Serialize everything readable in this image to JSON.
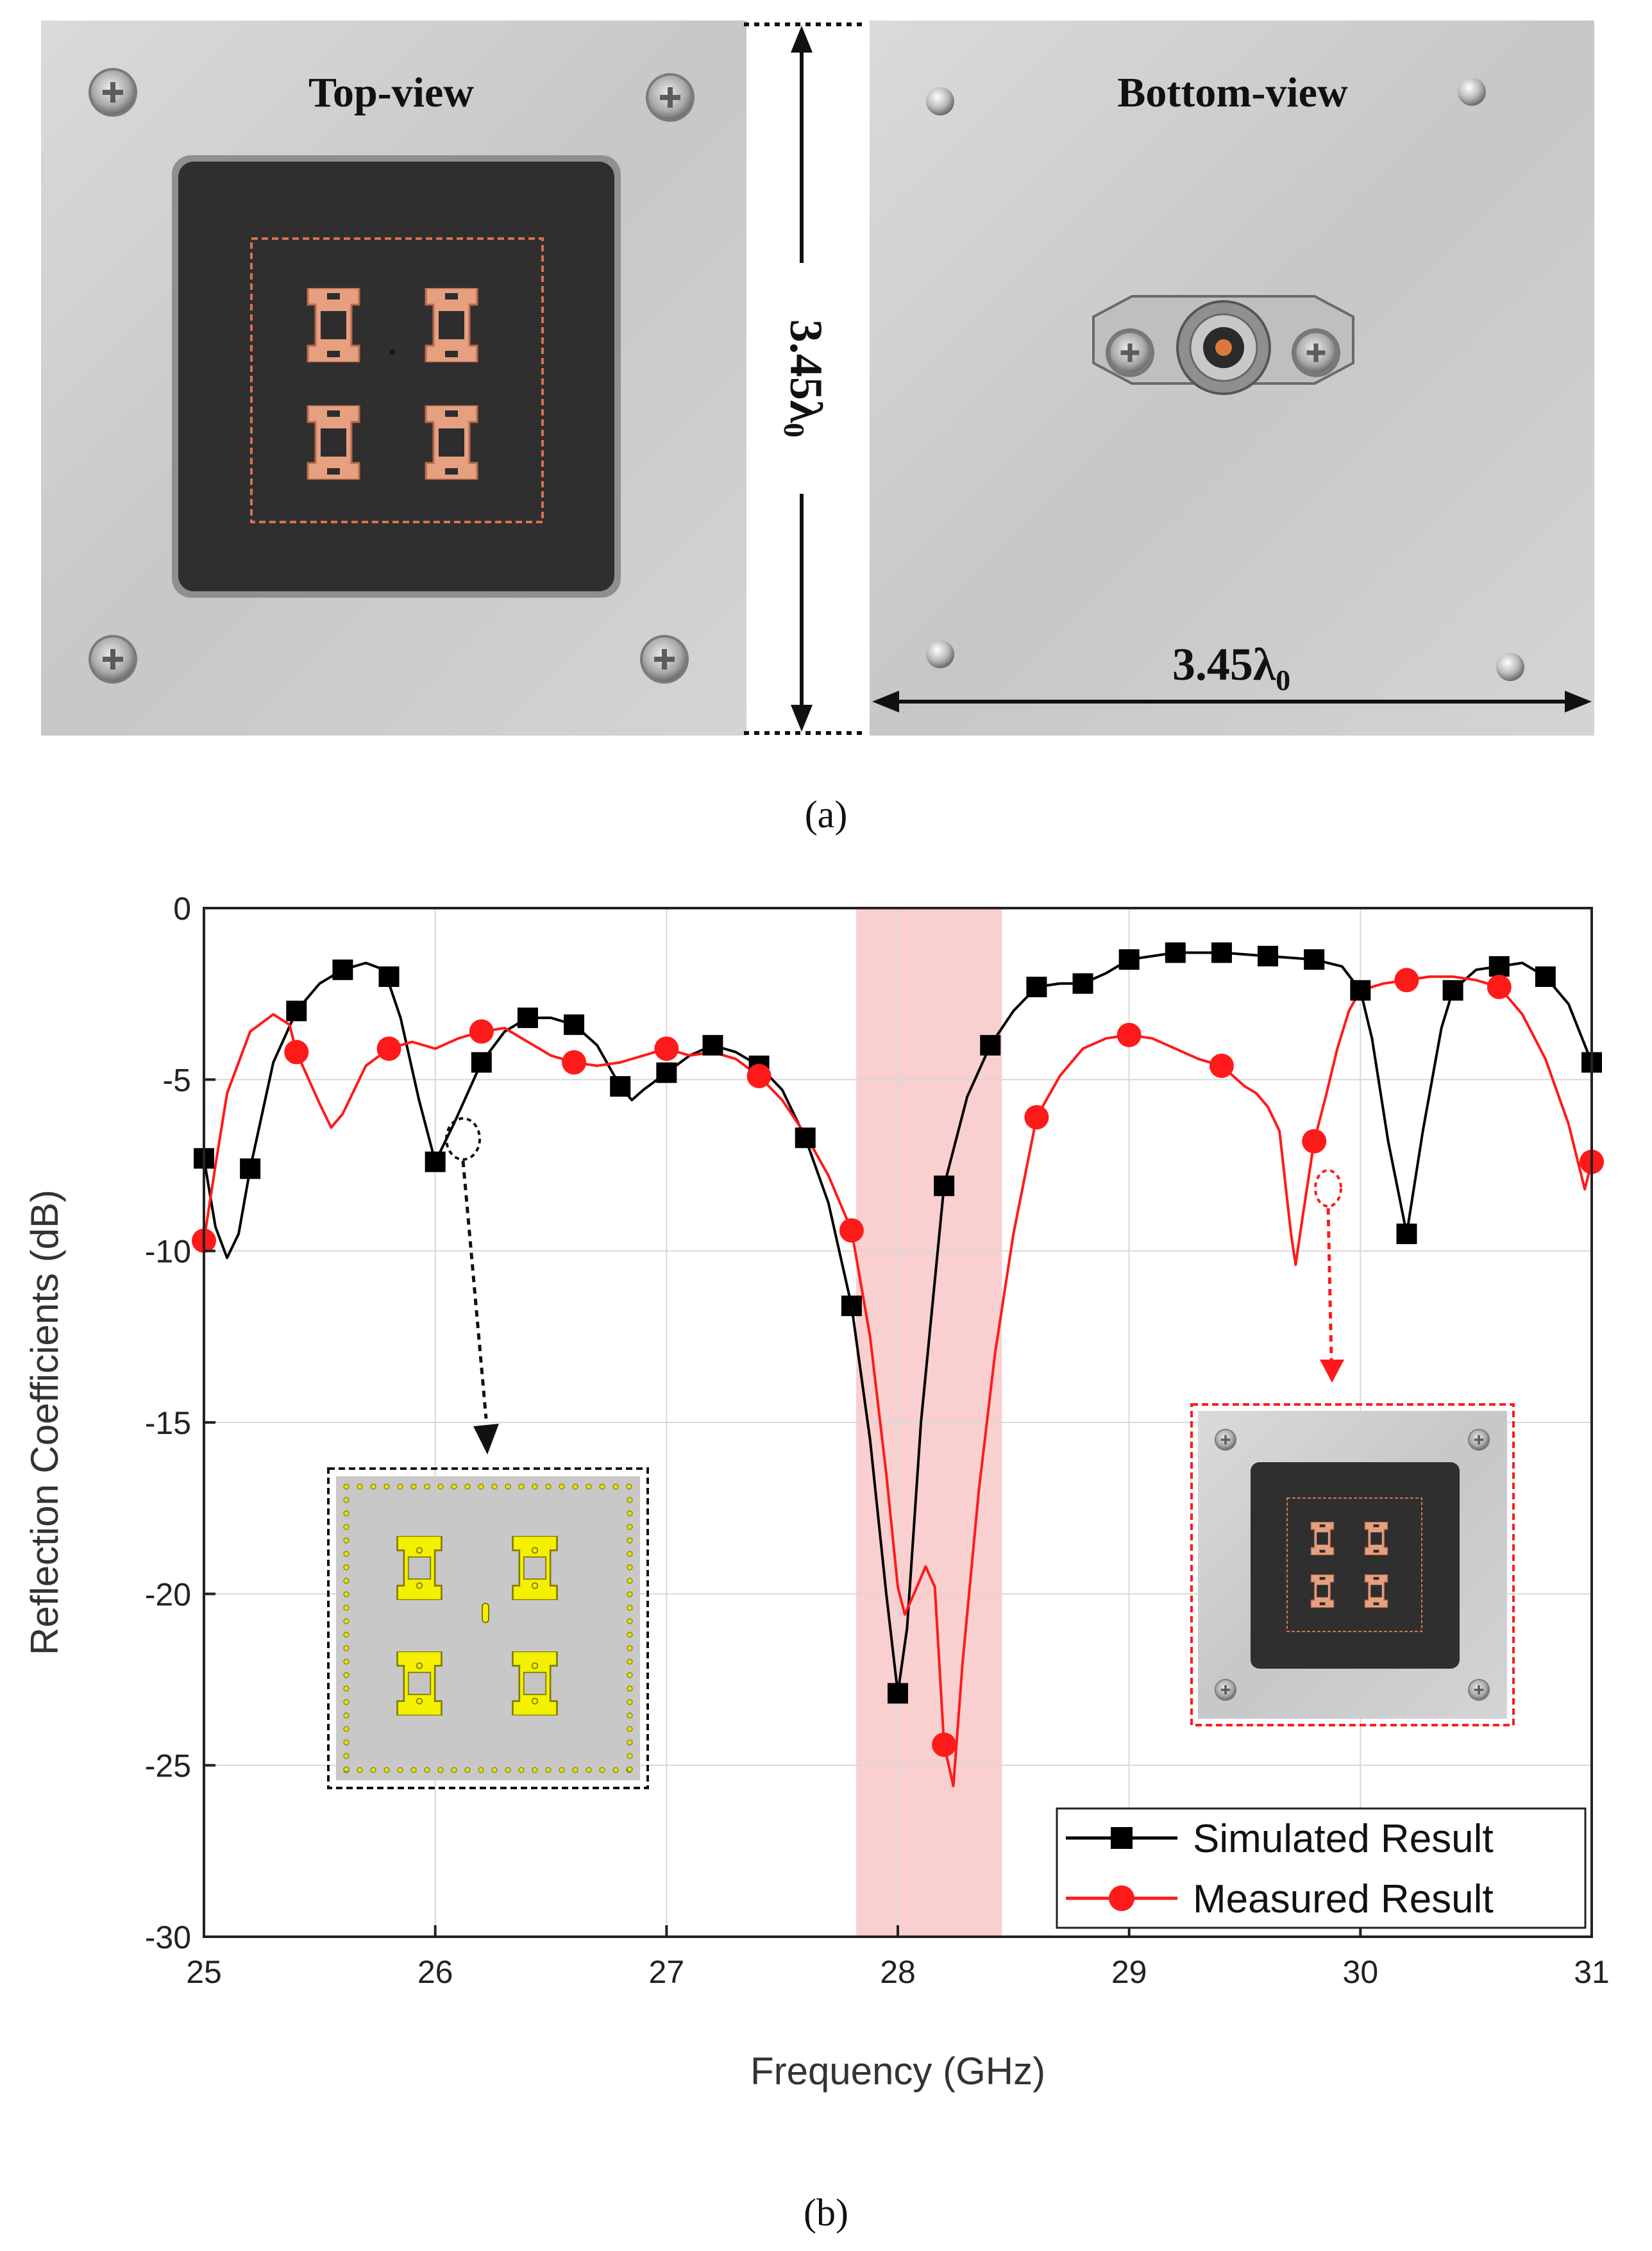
{
  "panel_a": {
    "caption": "(a)",
    "top_view_label": "Top-view",
    "bottom_view_label": "Bottom-view",
    "dimension_vertical": "3.45λ",
    "dimension_horizontal": "3.45λ",
    "dimension_subscript": "0"
  },
  "panel_b": {
    "caption": "(b)"
  },
  "colors": {
    "simulated": "#000000",
    "measured": "#ff1a1a",
    "highlight": "#f9cfcf",
    "board": "#303030",
    "copper": "#e39a7a",
    "aluminum": "#cfd0d2",
    "patch_yellow": "#f4f000"
  },
  "chart_data": {
    "type": "line",
    "title": "",
    "xlabel": "Frequency (GHz)",
    "ylabel": "Reflection Coefficients (dB)",
    "xlim": [
      25,
      31
    ],
    "ylim": [
      -30,
      0
    ],
    "xticks": [
      25,
      26,
      27,
      28,
      29,
      30,
      31
    ],
    "yticks": [
      0,
      -5,
      -10,
      -15,
      -20,
      -25,
      -30
    ],
    "grid": true,
    "legend_position": "bottom-right",
    "highlight_band": [
      27.82,
      28.45
    ],
    "series": [
      {
        "name": "Simulated Result",
        "marker": "square",
        "markers": [
          [
            25.0,
            -7.3
          ],
          [
            25.2,
            -7.6
          ],
          [
            25.4,
            -3.0
          ],
          [
            25.6,
            -1.8
          ],
          [
            25.8,
            -2.0
          ],
          [
            26.0,
            -7.4
          ],
          [
            26.2,
            -4.5
          ],
          [
            26.4,
            -3.2
          ],
          [
            26.6,
            -3.4
          ],
          [
            26.8,
            -5.2
          ],
          [
            27.0,
            -4.8
          ],
          [
            27.2,
            -4.0
          ],
          [
            27.4,
            -4.6
          ],
          [
            27.6,
            -6.7
          ],
          [
            27.8,
            -11.6
          ],
          [
            28.0,
            -22.9
          ],
          [
            28.2,
            -8.1
          ],
          [
            28.4,
            -4.0
          ],
          [
            28.6,
            -2.3
          ],
          [
            28.8,
            -2.2
          ],
          [
            29.0,
            -1.5
          ],
          [
            29.2,
            -1.3
          ],
          [
            29.4,
            -1.3
          ],
          [
            29.6,
            -1.4
          ],
          [
            29.8,
            -1.5
          ],
          [
            30.0,
            -2.4
          ],
          [
            30.2,
            -9.5
          ],
          [
            30.4,
            -2.4
          ],
          [
            30.6,
            -1.7
          ],
          [
            30.8,
            -2.0
          ],
          [
            31.0,
            -4.5
          ]
        ],
        "curve": [
          [
            25.0,
            -7.3
          ],
          [
            25.05,
            -9.3
          ],
          [
            25.1,
            -10.2
          ],
          [
            25.15,
            -9.5
          ],
          [
            25.2,
            -7.6
          ],
          [
            25.3,
            -4.5
          ],
          [
            25.4,
            -3.0
          ],
          [
            25.5,
            -2.2
          ],
          [
            25.6,
            -1.8
          ],
          [
            25.7,
            -1.6
          ],
          [
            25.78,
            -1.8
          ],
          [
            25.85,
            -3.2
          ],
          [
            25.93,
            -5.6
          ],
          [
            26.0,
            -7.4
          ],
          [
            26.08,
            -6.3
          ],
          [
            26.2,
            -4.5
          ],
          [
            26.3,
            -3.6
          ],
          [
            26.4,
            -3.2
          ],
          [
            26.5,
            -3.2
          ],
          [
            26.6,
            -3.4
          ],
          [
            26.7,
            -4.0
          ],
          [
            26.8,
            -5.2
          ],
          [
            26.85,
            -5.6
          ],
          [
            26.9,
            -5.3
          ],
          [
            27.0,
            -4.8
          ],
          [
            27.1,
            -4.3
          ],
          [
            27.2,
            -4.0
          ],
          [
            27.3,
            -4.2
          ],
          [
            27.4,
            -4.6
          ],
          [
            27.5,
            -5.3
          ],
          [
            27.6,
            -6.7
          ],
          [
            27.7,
            -8.6
          ],
          [
            27.8,
            -11.6
          ],
          [
            27.88,
            -15.5
          ],
          [
            27.95,
            -20.0
          ],
          [
            28.0,
            -22.9
          ],
          [
            28.04,
            -21.0
          ],
          [
            28.1,
            -15.0
          ],
          [
            28.2,
            -8.1
          ],
          [
            28.3,
            -5.5
          ],
          [
            28.4,
            -4.0
          ],
          [
            28.5,
            -3.0
          ],
          [
            28.6,
            -2.3
          ],
          [
            28.7,
            -2.2
          ],
          [
            28.8,
            -2.2
          ],
          [
            28.9,
            -1.9
          ],
          [
            29.0,
            -1.5
          ],
          [
            29.2,
            -1.3
          ],
          [
            29.4,
            -1.3
          ],
          [
            29.6,
            -1.4
          ],
          [
            29.8,
            -1.5
          ],
          [
            29.92,
            -1.7
          ],
          [
            30.0,
            -2.4
          ],
          [
            30.05,
            -3.8
          ],
          [
            30.12,
            -6.8
          ],
          [
            30.2,
            -9.5
          ],
          [
            30.27,
            -6.5
          ],
          [
            30.35,
            -3.5
          ],
          [
            30.4,
            -2.4
          ],
          [
            30.5,
            -1.8
          ],
          [
            30.6,
            -1.7
          ],
          [
            30.7,
            -1.6
          ],
          [
            30.8,
            -2.0
          ],
          [
            30.9,
            -2.8
          ],
          [
            31.0,
            -4.5
          ]
        ]
      },
      {
        "name": "Measured Result",
        "marker": "circle",
        "markers": [
          [
            25.0,
            -9.7
          ],
          [
            25.4,
            -4.2
          ],
          [
            25.8,
            -4.1
          ],
          [
            26.2,
            -3.6
          ],
          [
            26.6,
            -4.5
          ],
          [
            27.0,
            -4.1
          ],
          [
            27.4,
            -4.9
          ],
          [
            27.8,
            -9.4
          ],
          [
            28.2,
            -24.4
          ],
          [
            28.6,
            -6.1
          ],
          [
            29.0,
            -3.7
          ],
          [
            29.4,
            -4.6
          ],
          [
            29.8,
            -6.8
          ],
          [
            30.2,
            -2.1
          ],
          [
            30.6,
            -2.3
          ],
          [
            31.0,
            -7.4
          ]
        ],
        "curve": [
          [
            25.0,
            -9.7
          ],
          [
            25.05,
            -7.5
          ],
          [
            25.1,
            -5.4
          ],
          [
            25.2,
            -3.6
          ],
          [
            25.3,
            -3.1
          ],
          [
            25.37,
            -3.4
          ],
          [
            25.4,
            -4.2
          ],
          [
            25.5,
            -5.7
          ],
          [
            25.55,
            -6.4
          ],
          [
            25.6,
            -6.0
          ],
          [
            25.7,
            -4.6
          ],
          [
            25.8,
            -4.1
          ],
          [
            25.9,
            -3.9
          ],
          [
            26.0,
            -4.1
          ],
          [
            26.1,
            -3.8
          ],
          [
            26.2,
            -3.6
          ],
          [
            26.3,
            -3.5
          ],
          [
            26.4,
            -3.9
          ],
          [
            26.5,
            -4.3
          ],
          [
            26.6,
            -4.5
          ],
          [
            26.7,
            -4.6
          ],
          [
            26.8,
            -4.5
          ],
          [
            26.9,
            -4.3
          ],
          [
            27.0,
            -4.1
          ],
          [
            27.1,
            -4.3
          ],
          [
            27.2,
            -4.2
          ],
          [
            27.3,
            -4.4
          ],
          [
            27.4,
            -4.9
          ],
          [
            27.5,
            -5.6
          ],
          [
            27.6,
            -6.6
          ],
          [
            27.7,
            -7.8
          ],
          [
            27.8,
            -9.4
          ],
          [
            27.88,
            -12.5
          ],
          [
            27.95,
            -16.5
          ],
          [
            28.0,
            -19.8
          ],
          [
            28.03,
            -20.6
          ],
          [
            28.07,
            -20.0
          ],
          [
            28.12,
            -19.2
          ],
          [
            28.16,
            -19.8
          ],
          [
            28.2,
            -24.4
          ],
          [
            28.24,
            -25.6
          ],
          [
            28.28,
            -22.0
          ],
          [
            28.35,
            -17.0
          ],
          [
            28.42,
            -13.0
          ],
          [
            28.5,
            -9.5
          ],
          [
            28.6,
            -6.1
          ],
          [
            28.7,
            -4.9
          ],
          [
            28.8,
            -4.1
          ],
          [
            28.9,
            -3.8
          ],
          [
            29.0,
            -3.7
          ],
          [
            29.1,
            -3.8
          ],
          [
            29.2,
            -4.1
          ],
          [
            29.3,
            -4.4
          ],
          [
            29.4,
            -4.6
          ],
          [
            29.5,
            -5.2
          ],
          [
            29.55,
            -5.4
          ],
          [
            29.6,
            -5.8
          ],
          [
            29.65,
            -6.5
          ],
          [
            29.7,
            -9.5
          ],
          [
            29.72,
            -10.4
          ],
          [
            29.75,
            -9.0
          ],
          [
            29.8,
            -6.8
          ],
          [
            29.85,
            -5.5
          ],
          [
            29.9,
            -4.1
          ],
          [
            29.95,
            -3.0
          ],
          [
            30.0,
            -2.4
          ],
          [
            30.1,
            -2.2
          ],
          [
            30.2,
            -2.1
          ],
          [
            30.3,
            -2.0
          ],
          [
            30.4,
            -2.0
          ],
          [
            30.5,
            -2.1
          ],
          [
            30.6,
            -2.3
          ],
          [
            30.7,
            -3.1
          ],
          [
            30.8,
            -4.4
          ],
          [
            30.9,
            -6.3
          ],
          [
            30.97,
            -8.2
          ],
          [
            31.0,
            -7.4
          ]
        ]
      }
    ]
  }
}
